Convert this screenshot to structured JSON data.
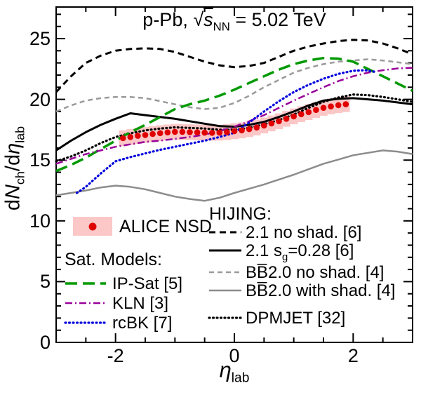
{
  "title": {
    "pre": "p-Pb, ",
    "sqrt": "√",
    "s": "s",
    "sub": "NN",
    "post": " = 5.02 TeV"
  },
  "axes": {
    "y": {
      "p1": "d",
      "p2": "N",
      "sub1": "ch",
      "p3": "/d",
      "p4": "η",
      "sub2": "lab"
    },
    "x": {
      "main": "η",
      "sub": "lab"
    }
  },
  "legend": {
    "alice": {
      "label": "ALICE NSD"
    },
    "sat": {
      "header": "Sat. Models:",
      "items": [
        {
          "key": "ipsat",
          "label": "IP-Sat [5]"
        },
        {
          "key": "kln",
          "label": "KLN [3]"
        },
        {
          "key": "rcbk",
          "label": "rcBK [7]"
        }
      ]
    },
    "hijing": {
      "header": "HIJING:",
      "items": [
        {
          "key": "h21ns",
          "label": "2.1 no shad. [6]"
        },
        {
          "key": "h21sg",
          "main": "2.1 s",
          "sub": "g",
          "tail": "=0.28 [6]"
        },
        {
          "key": "bbns",
          "label": "BB̅2.0 no shad. [4]"
        },
        {
          "key": "bbws",
          "label": "BB̅2.0 with shad. [4]"
        },
        {
          "key": "dpmjet",
          "label": "DPMJET [32]"
        }
      ]
    }
  },
  "chart_data": {
    "type": "line",
    "title": "p-Pb, sqrt(s_NN) = 5.02 TeV",
    "xlabel": "eta_lab",
    "ylabel": "dN_ch/deta_lab",
    "xlim": [
      -3,
      3
    ],
    "ylim": [
      0,
      27.6
    ],
    "x_major_ticks": [
      -2,
      0,
      2
    ],
    "x_tick_labels": [
      "-2",
      "0",
      "2"
    ],
    "x_minor_step": 0.5,
    "y_major_ticks": [
      0,
      5,
      10,
      15,
      20,
      25
    ],
    "y_tick_labels": [
      "0",
      "5",
      "10",
      "15",
      "20",
      "25"
    ],
    "y_minor_step": 1,
    "grid": false,
    "legend_position": "inside bottom",
    "series": [
      {
        "key": "h21ns",
        "name": "HIJING 2.1 no shad. [6]",
        "color": "#000000",
        "dash": "9 6",
        "width": 3,
        "x": [
          -3,
          -2.75,
          -2.5,
          -2.25,
          -2,
          -1.75,
          -1.5,
          -1.25,
          -1,
          -0.75,
          -0.5,
          -0.25,
          0,
          0.25,
          0.5,
          0.75,
          1,
          1.25,
          1.5,
          1.75,
          2,
          2.25,
          2.5,
          2.75,
          3
        ],
        "y": [
          20.6,
          21.9,
          23.0,
          23.6,
          24.0,
          24.15,
          24.2,
          24.15,
          23.9,
          23.5,
          23.1,
          22.8,
          22.65,
          22.75,
          23.0,
          23.5,
          24.0,
          24.35,
          24.6,
          24.8,
          24.9,
          24.85,
          24.6,
          24.2,
          23.7
        ]
      },
      {
        "key": "h21sg",
        "name": "HIJING 2.1 s_g=0.28 [6]",
        "color": "#000000",
        "dash": "",
        "width": 3,
        "x": [
          -3,
          -2.75,
          -2.5,
          -2.25,
          -2,
          -1.75,
          -1.5,
          -1.25,
          -1,
          -0.75,
          -0.5,
          -0.25,
          0,
          0.25,
          0.5,
          0.75,
          1,
          1.25,
          1.5,
          1.75,
          2,
          2.25,
          2.5,
          2.75,
          3
        ],
        "y": [
          15.8,
          16.6,
          17.3,
          17.9,
          18.4,
          18.85,
          18.7,
          18.55,
          18.4,
          18.2,
          18.0,
          17.8,
          17.75,
          17.9,
          18.15,
          18.55,
          19.0,
          19.5,
          19.9,
          20.05,
          20.1,
          20.0,
          19.9,
          19.75,
          19.6
        ]
      },
      {
        "key": "bbns",
        "name": "HIJING BB2.0 no shad. [4]",
        "color": "#9a9a9a",
        "dash": "7 5",
        "width": 2.5,
        "x": [
          -3,
          -2.75,
          -2.5,
          -2.25,
          -2,
          -1.75,
          -1.5,
          -1.25,
          -1,
          -0.75,
          -0.5,
          -0.25,
          0,
          0.25,
          0.5,
          0.75,
          1,
          1.25,
          1.5,
          1.75,
          2,
          2.25,
          2.5,
          2.75,
          3
        ],
        "y": [
          19.0,
          19.5,
          19.9,
          20.1,
          20.2,
          20.2,
          20.1,
          19.85,
          19.6,
          19.35,
          19.2,
          19.3,
          19.7,
          20.3,
          21.0,
          21.6,
          22.2,
          22.6,
          22.9,
          23.1,
          23.2,
          23.3,
          23.2,
          23.05,
          22.9
        ]
      },
      {
        "key": "bbws",
        "name": "HIJING BB2.0 with shad. [4]",
        "color": "#8c8c8c",
        "dash": "",
        "width": 2.5,
        "x": [
          -3,
          -2.75,
          -2.5,
          -2.25,
          -2,
          -1.75,
          -1.5,
          -1.25,
          -1,
          -0.75,
          -0.5,
          -0.25,
          0,
          0.25,
          0.5,
          0.75,
          1,
          1.25,
          1.5,
          1.75,
          2,
          2.25,
          2.5,
          2.75,
          3
        ],
        "y": [
          12.1,
          12.3,
          12.5,
          12.75,
          12.9,
          12.8,
          12.6,
          12.3,
          12.0,
          11.8,
          11.65,
          11.9,
          12.3,
          12.65,
          13.0,
          13.4,
          13.8,
          14.25,
          14.7,
          15.05,
          15.4,
          15.6,
          15.8,
          15.7,
          15.5
        ]
      },
      {
        "key": "dpmjet",
        "name": "DPMJET [32]",
        "color": "#000000",
        "dash": "1 4.5",
        "width": 3.2,
        "cap": "round",
        "x": [
          -3,
          -2.75,
          -2.5,
          -2.25,
          -2,
          -1.75,
          -1.5,
          -1.25,
          -1,
          -0.75,
          -0.5,
          -0.25,
          0,
          0.25,
          0.5,
          0.75,
          1,
          1.25,
          1.5,
          1.75,
          2,
          2.25,
          2.5,
          2.75,
          3
        ],
        "y": [
          14.9,
          15.3,
          15.8,
          16.4,
          16.9,
          17.2,
          17.45,
          17.6,
          17.7,
          17.65,
          17.6,
          17.5,
          17.5,
          17.65,
          17.95,
          18.3,
          18.75,
          19.3,
          19.8,
          20.15,
          20.4,
          20.35,
          20.2,
          20.0,
          19.8
        ]
      },
      {
        "key": "ipsat",
        "name": "IP-Sat [5]",
        "color": "#009900",
        "dash": "17 8",
        "width": 3.5,
        "x": [
          -3,
          -2.75,
          -2.5,
          -2.25,
          -2,
          -1.75,
          -1.5,
          -1.25,
          -1,
          -0.75,
          -0.5,
          -0.25,
          0,
          0.25,
          0.5,
          0.75,
          1,
          1.25,
          1.5,
          1.75,
          2,
          2.25,
          2.5,
          2.75,
          3
        ],
        "y": [
          14.1,
          14.6,
          15.2,
          15.9,
          16.6,
          17.3,
          17.9,
          18.55,
          19.2,
          19.6,
          19.9,
          20.3,
          20.8,
          21.35,
          21.9,
          22.45,
          22.9,
          23.2,
          23.4,
          23.35,
          23.1,
          22.5,
          21.9,
          21.3,
          20.7
        ]
      },
      {
        "key": "kln",
        "name": "KLN [3]",
        "color": "#990099",
        "dash": "10 4 2 4",
        "width": 2.5,
        "x": [
          -3,
          -2.75,
          -2.5,
          -2.25,
          -2,
          -1.75,
          -1.5,
          -1.25,
          -1,
          -0.75,
          -0.5,
          -0.25,
          0,
          0.25,
          0.5,
          0.75,
          1,
          1.25,
          1.5,
          1.75,
          2,
          2.25,
          2.5,
          2.75,
          3
        ],
        "y": [
          14.7,
          15.1,
          15.5,
          15.8,
          16.1,
          16.3,
          16.5,
          16.6,
          16.75,
          16.9,
          17.1,
          17.4,
          17.75,
          18.2,
          18.7,
          19.3,
          19.9,
          20.45,
          21.0,
          21.5,
          21.9,
          22.2,
          22.4,
          22.55,
          22.6
        ]
      },
      {
        "key": "rcbk",
        "name": "rcBK [7]",
        "color": "#0000dd",
        "dash": "1 4.5",
        "width": 3.2,
        "cap": "round",
        "x": [
          -2.65,
          -2.5,
          -2.25,
          -2,
          -1.75,
          -1.5,
          -1.25,
          -1,
          -0.75,
          -0.5,
          -0.25,
          0,
          0.25,
          0.5,
          0.75,
          1,
          1.25,
          1.5,
          1.75,
          2,
          2.2,
          2.4
        ],
        "y": [
          12.3,
          12.8,
          13.9,
          14.9,
          15.25,
          15.55,
          15.85,
          16.1,
          16.35,
          16.6,
          16.9,
          17.25,
          18.1,
          19.0,
          19.85,
          20.6,
          21.2,
          21.7,
          22.1,
          22.35,
          22.4,
          22.25
        ]
      }
    ],
    "alice": {
      "name": "ALICE NSD",
      "marker_color": "#e00000",
      "band_color": "#fbc7c7",
      "band_halfwidth": 0.65,
      "x": [
        -1.875,
        -1.75,
        -1.625,
        -1.5,
        -1.375,
        -1.25,
        -1.125,
        -1,
        -0.875,
        -0.75,
        -0.625,
        -0.5,
        -0.375,
        -0.25,
        -0.125,
        0,
        0.125,
        0.25,
        0.375,
        0.5,
        0.625,
        0.75,
        0.875,
        1,
        1.125,
        1.25,
        1.375,
        1.5,
        1.625,
        1.75,
        1.875
      ],
      "y": [
        16.8,
        16.9,
        17.0,
        17.07,
        17.15,
        17.22,
        17.28,
        17.33,
        17.32,
        17.3,
        17.28,
        17.26,
        17.25,
        17.26,
        17.3,
        17.38,
        17.45,
        17.55,
        17.68,
        17.85,
        18.02,
        18.2,
        18.4,
        18.6,
        18.78,
        18.95,
        19.13,
        19.3,
        19.42,
        19.52,
        19.6
      ]
    }
  }
}
